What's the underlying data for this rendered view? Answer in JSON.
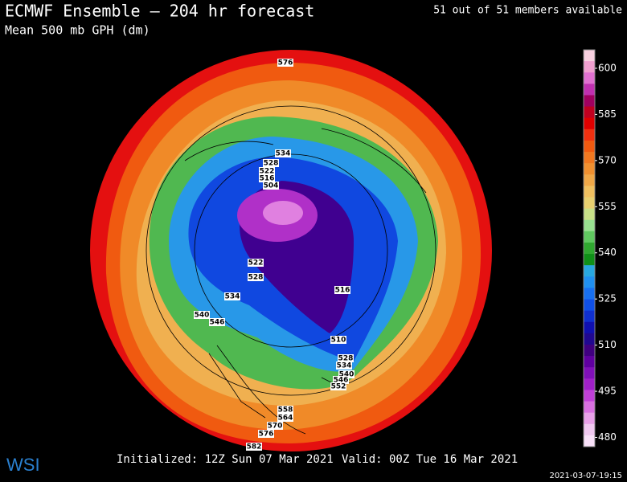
{
  "header": {
    "title": "ECMWF Ensemble — 204 hr forecast",
    "subtitle": "Mean 500 mb GPH (dm)",
    "members": "51 out of 51 members available"
  },
  "colorbar": {
    "lim": [
      477,
      606
    ],
    "ticks": [
      600,
      585,
      570,
      555,
      540,
      525,
      510,
      495,
      480
    ],
    "colors": [
      "#f8d0e0",
      "#f0a0d0",
      "#e070d0",
      "#c030b0",
      "#a00060",
      "#c00020",
      "#e00000",
      "#f03010",
      "#f05a10",
      "#f07820",
      "#f09030",
      "#f0a848",
      "#f0c060",
      "#e8d070",
      "#c8e088",
      "#98e090",
      "#60c860",
      "#30a830",
      "#109018",
      "#28a8e0",
      "#2090f0",
      "#1870f0",
      "#1050e8",
      "#1030d0",
      "#1010b0",
      "#200890",
      "#400080",
      "#6000a0",
      "#8010b8",
      "#a020c8",
      "#c040d8",
      "#d870e0",
      "#e8a0e8",
      "#f0c8f0",
      "#f8e0f8"
    ]
  },
  "map": {
    "contour_labels": [
      "576",
      "534",
      "528",
      "522",
      "516",
      "504",
      "522",
      "528",
      "534",
      "540",
      "546",
      "516",
      "510",
      "528",
      "534",
      "540",
      "546",
      "552",
      "558",
      "564",
      "570",
      "576",
      "582"
    ]
  },
  "footer": {
    "initialized": "Initialized: 12Z Sun 07 Mar 2021",
    "valid": "Valid: 00Z Tue 16 Mar 2021",
    "timestamp": "2021-03-07-19:15",
    "logo": "WSI"
  }
}
